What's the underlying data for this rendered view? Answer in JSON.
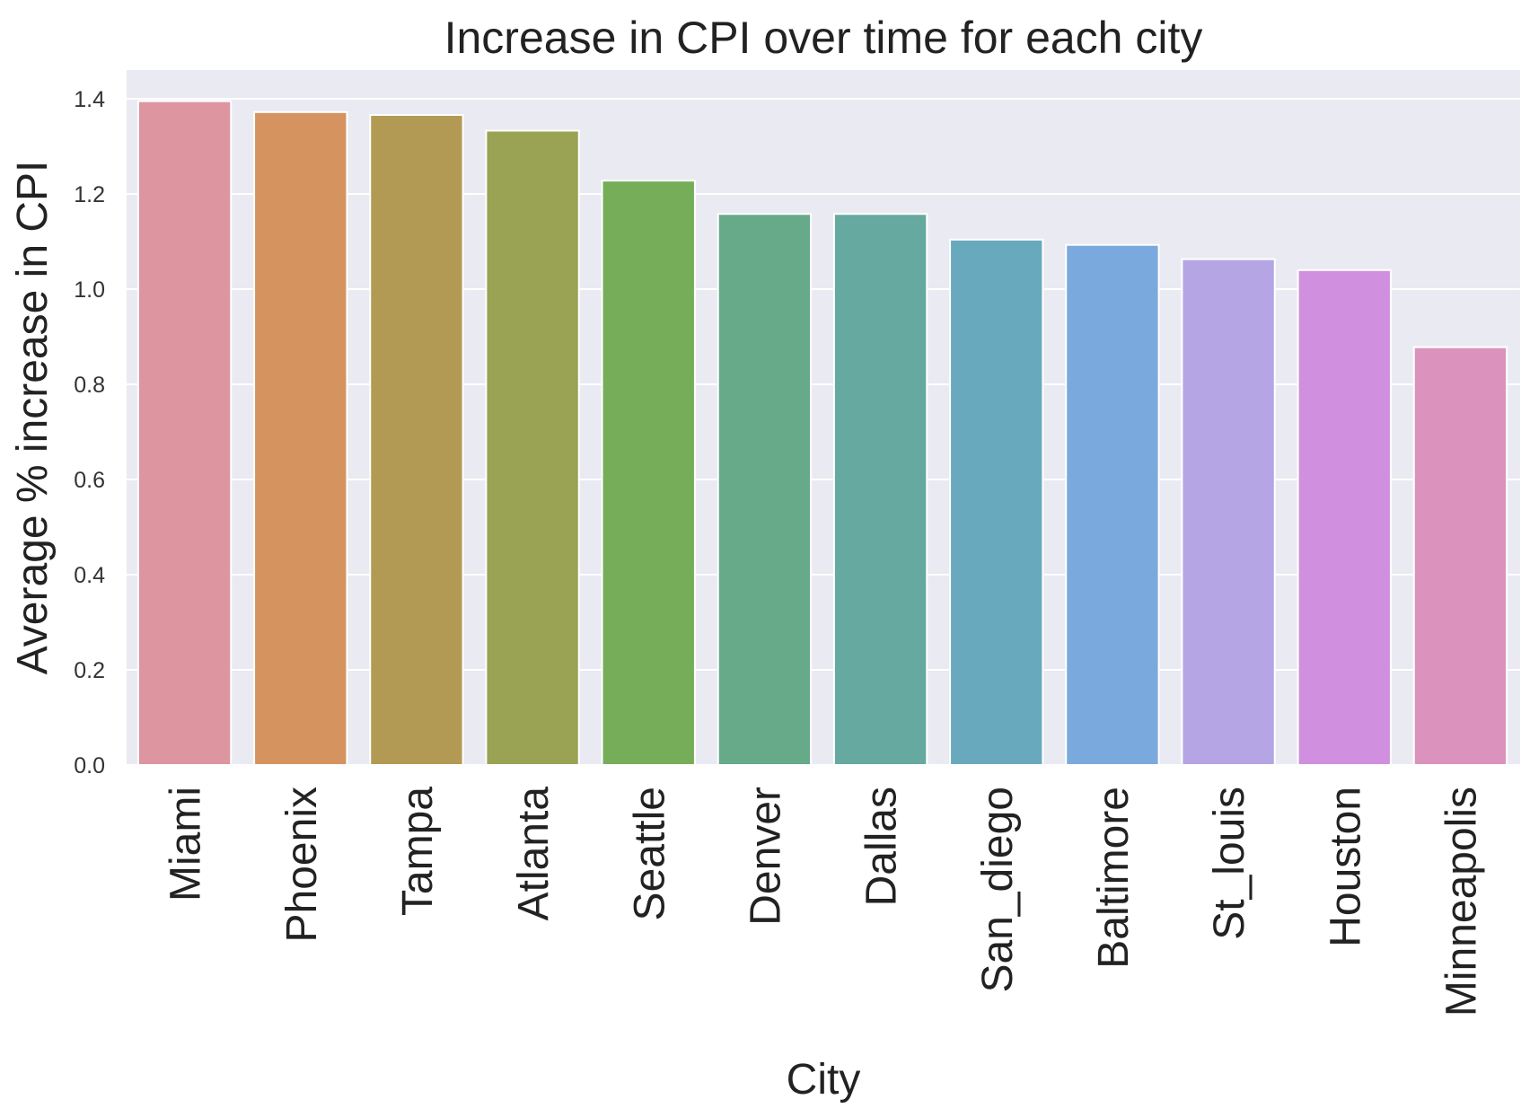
{
  "chart_data": {
    "type": "bar",
    "title": "Increase in CPI over time for each city",
    "xlabel": "City",
    "ylabel": "Average % increase in CPI",
    "ylim": [
      0,
      1.46
    ],
    "yticks": [
      "0.0",
      "0.2",
      "0.4",
      "0.6",
      "0.8",
      "1.0",
      "1.2",
      "1.4"
    ],
    "grid": true,
    "legend": "none",
    "background": "#eaeaf2",
    "categories": [
      "Miami",
      "Phoenix",
      "Tampa",
      "Atlanta",
      "Seattle",
      "Denver",
      "Dallas",
      "San_diego",
      "Baltimore",
      "St_louis",
      "Houston",
      "Minneapolis"
    ],
    "values": [
      1.395,
      1.372,
      1.366,
      1.333,
      1.228,
      1.158,
      1.158,
      1.104,
      1.093,
      1.063,
      1.04,
      0.878
    ],
    "colors": [
      "#dd96a0",
      "#d4935f",
      "#b39a54",
      "#9aa253",
      "#75ad58",
      "#66aa8a",
      "#65a9a0",
      "#68a9bd",
      "#7aa9de",
      "#b5a5e5",
      "#d18fe0",
      "#db93bd"
    ]
  }
}
